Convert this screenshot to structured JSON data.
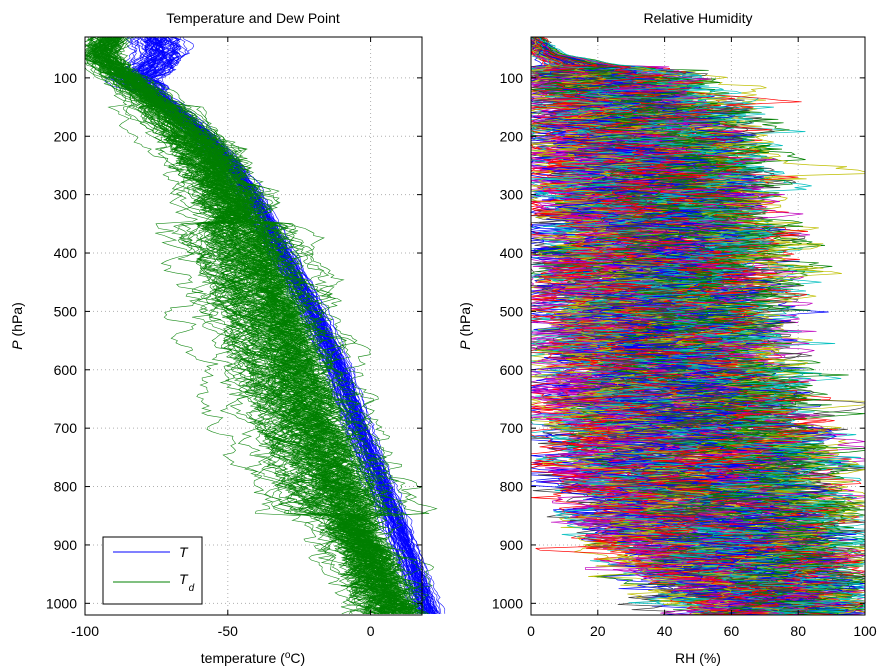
{
  "chart_data": [
    {
      "type": "line",
      "title": "Temperature and Dew Point",
      "xlabel": {
        "prefix": "temperature (",
        "sup": "o",
        "suffix": "C)"
      },
      "ylabel": {
        "italic": "P",
        "rest": " (hPa)"
      },
      "xlim": [
        -100,
        18
      ],
      "ylim": [
        30,
        1020
      ],
      "y_reversed": true,
      "grid": true,
      "xticks": [
        -100,
        -50,
        0
      ],
      "xtick_labels": [
        "-100",
        "-50",
        "0"
      ],
      "yticks": [
        100,
        200,
        300,
        400,
        500,
        600,
        700,
        800,
        900,
        1000
      ],
      "ytick_labels": [
        "100",
        "200",
        "300",
        "400",
        "500",
        "600",
        "700",
        "800",
        "900",
        "1000"
      ],
      "legend_position": "bottom-left",
      "series": [
        {
          "name": "T",
          "name_sub": "",
          "color": "#0000ff",
          "profile": {
            "p": [
              30,
              60,
              90,
              100,
              150,
              200,
              250,
              300,
              400,
              500,
              600,
              700,
              800,
              900,
              1000,
              1020
            ],
            "value": [
              -75,
              -73,
              -78,
              -82,
              -70,
              -58,
              -49,
              -42,
              -31,
              -20,
              -11,
              -4,
              4,
              12,
              19,
              21
            ]
          }
        },
        {
          "name": "T",
          "name_sub": "d",
          "color": "#008000",
          "profile": {
            "p": [
              30,
              60,
              90,
              100,
              150,
              200,
              250,
              300,
              400,
              500,
              600,
              700,
              800,
              900,
              1000,
              1020
            ],
            "value": [
              -91,
              -95,
              -88,
              -85,
              -73,
              -63,
              -56,
              -50,
              -42,
              -35,
              -28,
              -21,
              -12,
              -3,
              7,
              9
            ]
          }
        }
      ]
    },
    {
      "type": "line",
      "title": "Relative Humidity",
      "xlabel": {
        "prefix": "RH (%)"
      },
      "ylabel": {
        "italic": "P",
        "rest": " (hPa)"
      },
      "xlim": [
        0,
        100
      ],
      "ylim": [
        30,
        1020
      ],
      "y_reversed": true,
      "grid": true,
      "xticks": [
        0,
        20,
        40,
        60,
        80,
        100
      ],
      "xtick_labels": [
        "0",
        "20",
        "40",
        "60",
        "80",
        "100"
      ],
      "yticks": [
        100,
        200,
        300,
        400,
        500,
        600,
        700,
        800,
        900,
        1000
      ],
      "ytick_labels": [
        "100",
        "200",
        "300",
        "400",
        "500",
        "600",
        "700",
        "800",
        "900",
        "1000"
      ],
      "series_colors": [
        "#0000ff",
        "#008000",
        "#ff0000",
        "#00bfbf",
        "#bf00bf",
        "#bfbf00",
        "#404040"
      ],
      "envelope": {
        "p": [
          30,
          60,
          90,
          150,
          250,
          350,
          500,
          650,
          800,
          900,
          960,
          1020
        ],
        "max": [
          2,
          10,
          42,
          56,
          68,
          72,
          70,
          82,
          95,
          100,
          98,
          90
        ],
        "min": [
          0,
          0,
          2,
          2,
          3,
          3,
          3,
          3,
          2,
          18,
          35,
          55
        ]
      }
    }
  ]
}
